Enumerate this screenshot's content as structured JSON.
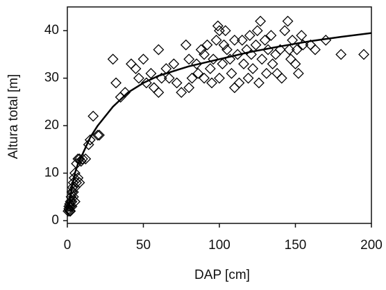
{
  "chart_data": {
    "type": "scatter",
    "xlabel": "DAP [cm]",
    "ylabel": "Altura total [m]",
    "xlim": [
      0,
      200
    ],
    "ylim": [
      0,
      45
    ],
    "xticks": [
      0,
      50,
      100,
      150,
      200
    ],
    "yticks": [
      0,
      10,
      20,
      30,
      40
    ],
    "series": [
      {
        "kind": "markers",
        "marker": "diamond",
        "color": "#000000",
        "x": [
          0.5,
          1,
          1,
          1.5,
          1.5,
          2,
          2,
          2,
          2.5,
          3,
          3,
          3,
          3.5,
          4,
          4,
          4,
          4.5,
          5,
          5,
          5,
          6,
          6,
          7,
          7,
          8,
          8,
          9,
          10,
          12,
          14,
          15,
          17,
          20,
          21,
          30,
          32,
          35,
          38,
          42,
          45,
          47,
          50,
          52,
          55,
          57,
          60,
          60,
          62,
          65,
          67,
          70,
          72,
          75,
          78,
          80,
          80,
          82,
          85,
          86,
          88,
          90,
          90,
          92,
          94,
          95,
          96,
          98,
          99,
          100,
          100,
          102,
          103,
          104,
          105,
          107,
          108,
          110,
          110,
          112,
          113,
          115,
          116,
          118,
          119,
          120,
          121,
          122,
          124,
          125,
          126,
          127,
          128,
          130,
          131,
          132,
          134,
          135,
          137,
          138,
          140,
          141,
          143,
          145,
          146,
          147,
          148,
          150,
          151,
          152,
          154,
          155,
          160,
          163,
          170,
          180,
          195
        ],
        "values": [
          2,
          2.5,
          3,
          2,
          3.5,
          2,
          4,
          3,
          5,
          3,
          6,
          4,
          7,
          5,
          8,
          6,
          9,
          10,
          7,
          4,
          12,
          8,
          13,
          9,
          8,
          13,
          12.5,
          13,
          13,
          16,
          17,
          22,
          18,
          18,
          34,
          29,
          26,
          27,
          33,
          32,
          30,
          34,
          29,
          31,
          28,
          36,
          27,
          30,
          32,
          30,
          33,
          29,
          27,
          37,
          34,
          28,
          30,
          33,
          31,
          36,
          35,
          30,
          37,
          32,
          29,
          34,
          38,
          41,
          40,
          30,
          33,
          37,
          40,
          36,
          34,
          31,
          38,
          28,
          35,
          29,
          38,
          33,
          36,
          30,
          39,
          35,
          32,
          37,
          40,
          29,
          42,
          34,
          38,
          31,
          36,
          39,
          33,
          35,
          31,
          36,
          30,
          40,
          42,
          36,
          34,
          38,
          33,
          36,
          31,
          39,
          37,
          37,
          36,
          38,
          35,
          35
        ]
      },
      {
        "kind": "line",
        "color": "#000000",
        "x": [
          1,
          2,
          3,
          5,
          7,
          10,
          15,
          20,
          30,
          40,
          50,
          60,
          80,
          100,
          120,
          140,
          160,
          180,
          200
        ],
        "values": [
          3,
          5,
          7,
          10,
          12,
          14,
          17.5,
          20,
          24,
          27,
          29,
          30.5,
          32.5,
          34,
          35.5,
          36.7,
          37.8,
          38.7,
          39.5
        ]
      }
    ]
  }
}
